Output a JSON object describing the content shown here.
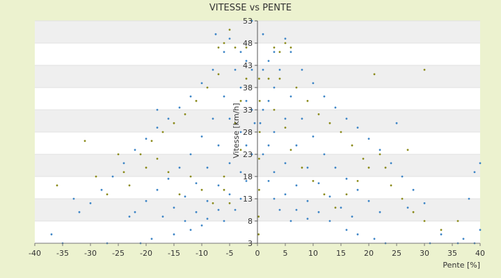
{
  "chart_data": {
    "type": "scatter",
    "title": "VITESSE vs PENTE",
    "xlabel": "Pente [%]",
    "ylabel": "Vitesse [km/h]",
    "xlim": [
      -40,
      40
    ],
    "ylim": [
      3,
      53
    ],
    "x_ticks": [
      -40,
      -35,
      -30,
      -25,
      -20,
      -15,
      -10,
      -5,
      0,
      5,
      10,
      15,
      20,
      25,
      30,
      35,
      40
    ],
    "y_ticks": [
      3,
      8,
      13,
      18,
      23,
      28,
      33,
      38,
      43,
      48,
      53
    ],
    "grid": true,
    "legend": "none",
    "colors": {
      "series_a": "#3d85c6",
      "series_b": "#8a8a1a",
      "band": "#efefef",
      "plot_bg": "#ffffff",
      "page_bg": "#ecf2cf"
    },
    "series": [
      {
        "color": "#3d85c6",
        "points": [
          [
            -30,
            12
          ],
          [
            -28,
            15
          ],
          [
            -26,
            18
          ],
          [
            -24,
            21
          ],
          [
            -22,
            24
          ],
          [
            -20,
            26.5
          ],
          [
            -18,
            29
          ],
          [
            -16,
            31
          ],
          [
            -14,
            33.5
          ],
          [
            -12,
            36
          ],
          [
            -10,
            39
          ],
          [
            -8,
            42
          ],
          [
            -6,
            46
          ],
          [
            -5,
            49
          ],
          [
            -22,
            10
          ],
          [
            -20,
            12.5
          ],
          [
            -18,
            15
          ],
          [
            -16,
            17.5
          ],
          [
            -14,
            20
          ],
          [
            -12,
            23
          ],
          [
            -10,
            27
          ],
          [
            -8,
            31
          ],
          [
            -6,
            36
          ],
          [
            -4,
            42
          ],
          [
            -3,
            46
          ],
          [
            -17,
            9
          ],
          [
            -15,
            11
          ],
          [
            -13,
            13.5
          ],
          [
            -11,
            16.5
          ],
          [
            -9,
            20
          ],
          [
            -7,
            25
          ],
          [
            -5,
            31
          ],
          [
            -3,
            38
          ],
          [
            -2,
            44
          ],
          [
            -13,
            8
          ],
          [
            -11,
            10
          ],
          [
            -9,
            12.5
          ],
          [
            -7,
            16
          ],
          [
            -5,
            21
          ],
          [
            -3,
            28
          ],
          [
            -2,
            35
          ],
          [
            -1,
            42
          ],
          [
            -9,
            8.5
          ],
          [
            -7,
            10.5
          ],
          [
            -5,
            14
          ],
          [
            -3,
            19
          ],
          [
            -2,
            25
          ],
          [
            -1,
            33
          ],
          [
            -6,
            8
          ],
          [
            -4,
            10.5
          ],
          [
            -3,
            13
          ],
          [
            -2,
            17
          ],
          [
            -1,
            23
          ],
          [
            -0.5,
            30
          ],
          [
            30,
            12
          ],
          [
            28,
            15
          ],
          [
            26,
            18
          ],
          [
            24,
            21
          ],
          [
            22,
            24
          ],
          [
            20,
            26.5
          ],
          [
            18,
            29
          ],
          [
            16,
            31
          ],
          [
            14,
            33.5
          ],
          [
            12,
            36
          ],
          [
            10,
            39
          ],
          [
            8,
            42
          ],
          [
            6,
            46
          ],
          [
            5,
            49
          ],
          [
            22,
            10
          ],
          [
            20,
            12.5
          ],
          [
            18,
            15
          ],
          [
            16,
            17.5
          ],
          [
            14,
            20
          ],
          [
            12,
            23
          ],
          [
            10,
            27
          ],
          [
            8,
            31
          ],
          [
            6,
            36
          ],
          [
            4,
            42
          ],
          [
            3,
            46
          ],
          [
            17,
            9
          ],
          [
            15,
            11
          ],
          [
            13,
            13.5
          ],
          [
            11,
            16.5
          ],
          [
            9,
            20
          ],
          [
            7,
            25
          ],
          [
            5,
            31
          ],
          [
            3,
            38
          ],
          [
            2,
            44
          ],
          [
            13,
            8
          ],
          [
            11,
            10
          ],
          [
            9,
            12.5
          ],
          [
            7,
            16
          ],
          [
            5,
            21
          ],
          [
            3,
            28
          ],
          [
            2,
            35
          ],
          [
            1,
            42
          ],
          [
            9,
            8.5
          ],
          [
            7,
            10.5
          ],
          [
            5,
            14
          ],
          [
            3,
            19
          ],
          [
            2,
            25
          ],
          [
            1,
            33
          ],
          [
            6,
            8
          ],
          [
            4,
            10.5
          ],
          [
            3,
            13
          ],
          [
            2,
            17
          ],
          [
            1,
            23
          ],
          [
            0.5,
            30
          ],
          [
            -37,
            5
          ],
          [
            -35,
            3
          ],
          [
            -33,
            13
          ],
          [
            -32,
            10
          ],
          [
            -27,
            3
          ],
          [
            -23,
            9
          ],
          [
            -21,
            3
          ],
          [
            -19,
            4
          ],
          [
            -18,
            33
          ],
          [
            -15,
            5
          ],
          [
            -12,
            6
          ],
          [
            -10,
            7
          ],
          [
            -7.5,
            50
          ],
          [
            36,
            3
          ],
          [
            37,
            4
          ],
          [
            38,
            13
          ],
          [
            40,
            6
          ],
          [
            39,
            3
          ],
          [
            33,
            5
          ],
          [
            31,
            3
          ],
          [
            27,
            11
          ],
          [
            25,
            30
          ],
          [
            23,
            3
          ],
          [
            21,
            4
          ],
          [
            18,
            5
          ],
          [
            16,
            6
          ],
          [
            40,
            21
          ],
          [
            39,
            19
          ],
          [
            -1,
            53
          ],
          [
            1,
            50
          ]
        ]
      },
      {
        "color": "#8a8a1a",
        "points": [
          [
            -31,
            26
          ],
          [
            -27,
            14
          ],
          [
            -24,
            19
          ],
          [
            -21,
            23
          ],
          [
            -19,
            26
          ],
          [
            -17,
            28
          ],
          [
            -15,
            30
          ],
          [
            -13,
            32
          ],
          [
            -11,
            35
          ],
          [
            -9,
            38
          ],
          [
            -7,
            41
          ],
          [
            -7,
            47
          ],
          [
            -6,
            48
          ],
          [
            -5,
            51
          ],
          [
            -4,
            47
          ],
          [
            -2,
            47
          ],
          [
            -2,
            40
          ],
          [
            -3,
            35
          ],
          [
            -4,
            30
          ],
          [
            -3,
            24
          ],
          [
            -6,
            18
          ],
          [
            -6,
            15
          ],
          [
            -5,
            12
          ],
          [
            -8,
            12
          ],
          [
            -10,
            15
          ],
          [
            -12,
            18
          ],
          [
            -14,
            14
          ],
          [
            -16,
            19
          ],
          [
            -18,
            22
          ],
          [
            -20,
            20
          ],
          [
            -23,
            16
          ],
          [
            -25,
            23
          ],
          [
            -29,
            18
          ],
          [
            -36,
            16
          ],
          [
            3,
            47
          ],
          [
            4,
            46
          ],
          [
            5,
            48
          ],
          [
            6,
            47
          ],
          [
            4,
            40
          ],
          [
            2,
            40
          ],
          [
            3,
            33
          ],
          [
            5,
            29
          ],
          [
            6,
            24
          ],
          [
            8,
            20
          ],
          [
            10,
            17
          ],
          [
            12,
            14
          ],
          [
            14,
            11
          ],
          [
            16,
            14
          ],
          [
            18,
            17
          ],
          [
            20,
            20
          ],
          [
            22,
            23
          ],
          [
            24,
            16
          ],
          [
            26,
            13
          ],
          [
            28,
            10
          ],
          [
            30,
            8
          ],
          [
            11,
            32
          ],
          [
            13,
            30
          ],
          [
            15,
            28
          ],
          [
            17,
            25
          ],
          [
            19,
            22
          ],
          [
            23,
            20
          ],
          [
            30,
            42
          ],
          [
            21,
            41
          ],
          [
            9,
            35
          ],
          [
            7,
            38
          ],
          [
            27,
            24
          ],
          [
            33,
            6
          ],
          [
            36,
            8
          ],
          [
            0.3,
            40
          ],
          [
            0.4,
            35
          ],
          [
            0.4,
            28
          ],
          [
            0.3,
            22
          ],
          [
            0.3,
            15
          ],
          [
            0.2,
            9
          ],
          [
            0.2,
            5
          ]
        ]
      }
    ]
  }
}
